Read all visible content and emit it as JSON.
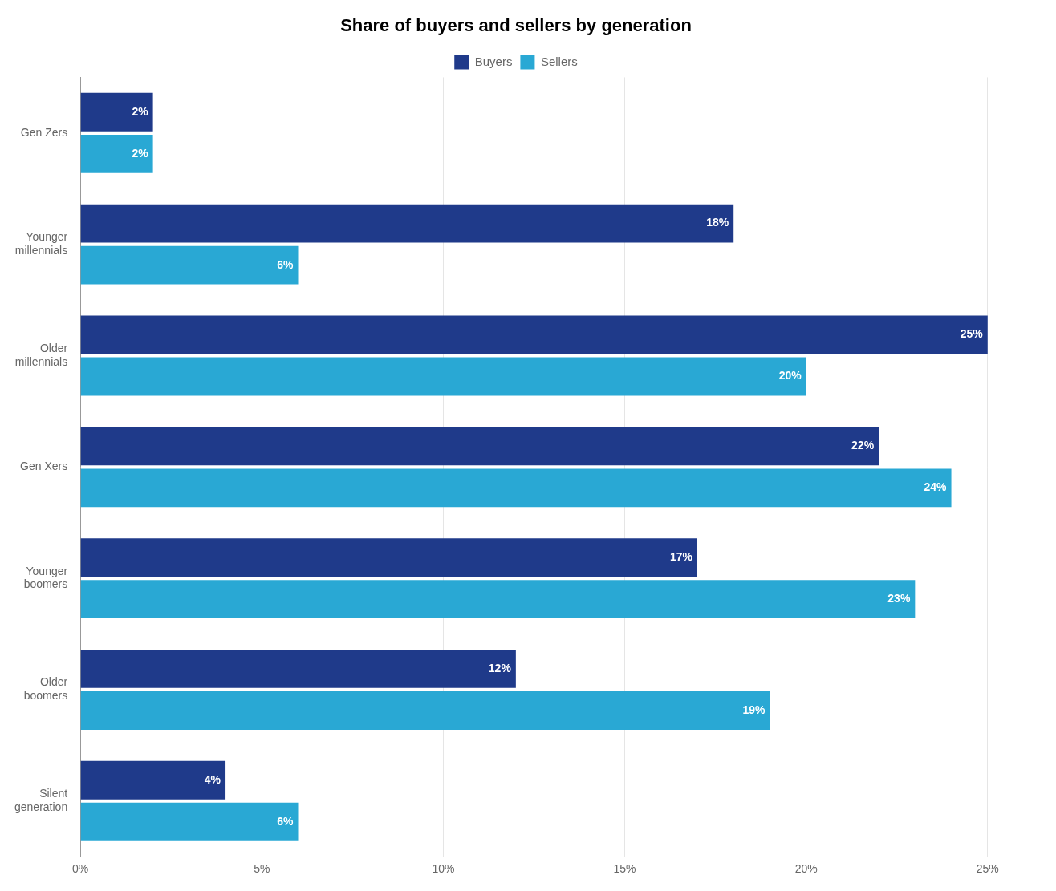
{
  "chart_data": {
    "type": "bar",
    "orientation": "horizontal",
    "title": "Share of buyers and sellers by generation",
    "categories": [
      "Gen Zers",
      "Younger\nmillennials",
      "Older\nmillennials",
      "Gen Xers",
      "Younger\nboomers",
      "Older\nboomers",
      "Silent\ngeneration"
    ],
    "series": [
      {
        "name": "Buyers",
        "color": "#1f3a8a",
        "values": [
          2,
          18,
          25,
          22,
          17,
          12,
          4
        ],
        "value_labels": [
          "2%",
          "18%",
          "25%",
          "22%",
          "17%",
          "12%",
          "4%"
        ]
      },
      {
        "name": "Sellers",
        "color": "#29a8d4",
        "values": [
          2,
          6,
          20,
          24,
          23,
          19,
          6
        ],
        "value_labels": [
          "2%",
          "6%",
          "20%",
          "24%",
          "23%",
          "19%",
          "6%"
        ]
      }
    ],
    "xlim": [
      0,
      26
    ],
    "xticks": [
      {
        "value": 0,
        "label": "0%"
      },
      {
        "value": 5,
        "label": "5%"
      },
      {
        "value": 10,
        "label": "10%"
      },
      {
        "value": 15,
        "label": "15%"
      },
      {
        "value": 20,
        "label": "20%"
      },
      {
        "value": 25,
        "label": "25%"
      }
    ],
    "grid": true,
    "legend": "top",
    "data_labels": true
  }
}
